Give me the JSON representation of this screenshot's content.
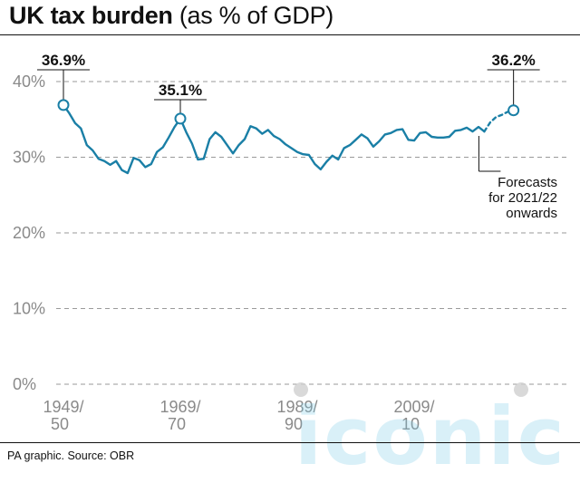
{
  "header": {
    "title_bold": "UK tax burden",
    "title_rest": "(as % of GDP)"
  },
  "footer": {
    "source": "PA graphic. Source: OBR"
  },
  "watermark": "iconic",
  "colors": {
    "line": "#1a7fa6",
    "grid": "#9a9a9a",
    "axis_text": "#8a8a8a",
    "annotation": "#111111"
  },
  "chart_data": {
    "type": "line",
    "title": "UK tax burden (as % of GDP)",
    "xlabel": "",
    "ylabel": "",
    "ylim": [
      0,
      40
    ],
    "yticks": [
      "0%",
      "10%",
      "20%",
      "30%",
      "40%"
    ],
    "ytick_values": [
      0,
      10,
      20,
      30,
      40
    ],
    "xtick_labels": [
      {
        "x": 1949,
        "line1": "1949/",
        "line2": "50"
      },
      {
        "x": 1969,
        "line1": "1969/",
        "line2": "70"
      },
      {
        "x": 1989,
        "line1": "1989/",
        "line2": "90"
      },
      {
        "x": 2009,
        "line1": "2009/",
        "line2": "10"
      }
    ],
    "grid": "horizontal dashed",
    "series": [
      {
        "style": "solid",
        "x": [
          1949,
          1950,
          1951,
          1952,
          1953,
          1954,
          1955,
          1956,
          1957,
          1958,
          1959,
          1960,
          1961,
          1962,
          1963,
          1964,
          1965,
          1966,
          1967,
          1968,
          1969,
          1970,
          1971,
          1972,
          1973,
          1974,
          1975,
          1976,
          1977,
          1978,
          1979,
          1980,
          1981,
          1982,
          1983,
          1984,
          1985,
          1986,
          1987,
          1988,
          1989,
          1990,
          1991,
          1992,
          1993,
          1994,
          1995,
          1996,
          1997,
          1998,
          1999,
          2000,
          2001,
          2002,
          2003,
          2004,
          2005,
          2006,
          2007,
          2008,
          2009,
          2010,
          2011,
          2012,
          2013,
          2014,
          2015,
          2016,
          2017,
          2018,
          2019,
          2020,
          2021
        ],
        "values": [
          36.9,
          35.8,
          34.5,
          33.8,
          31.6,
          30.9,
          29.8,
          29.5,
          29.0,
          29.5,
          28.3,
          27.9,
          29.9,
          29.6,
          28.7,
          29.1,
          30.7,
          31.3,
          32.6,
          34.0,
          35.1,
          33.3,
          31.8,
          29.7,
          29.8,
          32.4,
          33.3,
          32.7,
          31.6,
          30.5,
          31.6,
          32.4,
          34.1,
          33.8,
          33.1,
          33.6,
          32.8,
          32.4,
          31.7,
          31.2,
          30.7,
          30.4,
          30.3,
          29.1,
          28.4,
          29.4,
          30.2,
          29.7,
          31.2,
          31.6,
          32.3,
          33.0,
          32.5,
          31.4,
          32.1,
          33.0,
          33.2,
          33.6,
          33.7,
          32.3,
          32.2,
          33.2,
          33.3,
          32.7,
          32.6,
          32.6,
          32.7,
          33.5,
          33.6,
          33.9,
          33.4,
          34.0,
          33.4
        ]
      },
      {
        "style": "dashed",
        "x": [
          2021,
          2022,
          2023,
          2024,
          2025,
          2026
        ],
        "values": [
          33.4,
          34.6,
          35.3,
          35.6,
          36.0,
          36.2
        ]
      }
    ],
    "annotations": [
      {
        "label": "36.9%",
        "x": 1949,
        "y": 36.9
      },
      {
        "label": "35.1%",
        "x": 1969,
        "y": 35.1
      },
      {
        "label": "36.2%",
        "x": 2026,
        "y": 36.2
      }
    ],
    "note": [
      "Forecasts",
      "for 2021/22",
      "onwards"
    ]
  }
}
